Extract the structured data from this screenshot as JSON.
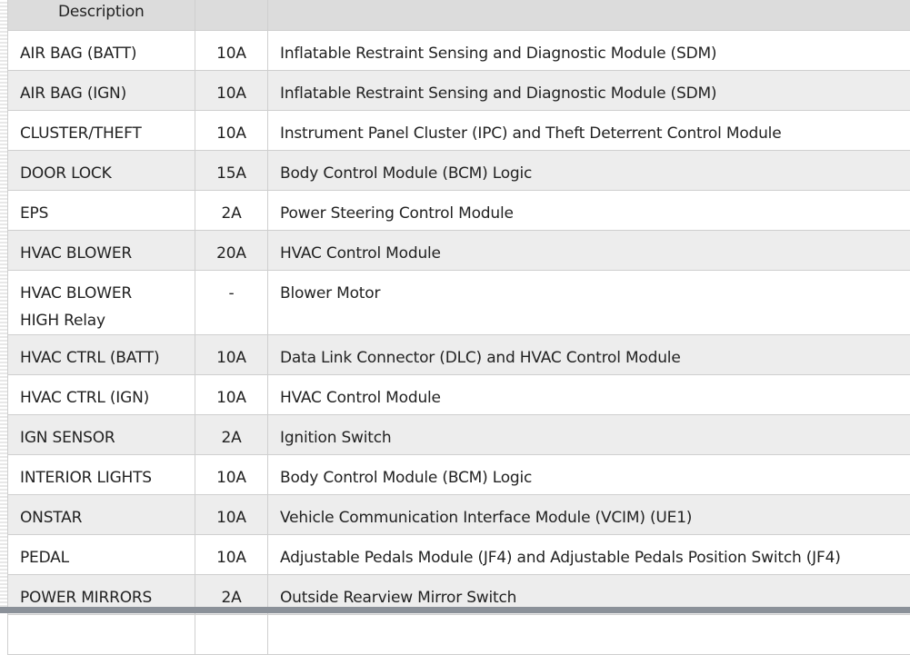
{
  "table": {
    "headers": [
      "Description",
      "",
      ""
    ],
    "rows": [
      {
        "name": "AIR BAG (BATT)",
        "amp": "10A",
        "desc": "Inflatable Restraint Sensing and Diagnostic Module (SDM)"
      },
      {
        "name": "AIR BAG (IGN)",
        "amp": "10A",
        "desc": "Inflatable Restraint Sensing and Diagnostic Module (SDM)"
      },
      {
        "name": "CLUSTER/THEFT",
        "amp": "10A",
        "desc": "Instrument Panel Cluster (IPC) and Theft Deterrent Control Module"
      },
      {
        "name": "DOOR LOCK",
        "amp": "15A",
        "desc": "Body Control Module (BCM) Logic"
      },
      {
        "name": "EPS",
        "amp": "2A",
        "desc": "Power Steering Control Module"
      },
      {
        "name": "HVAC BLOWER",
        "amp": "20A",
        "desc": "HVAC Control Module"
      },
      {
        "name": "HVAC BLOWER HIGH Relay",
        "amp": "-",
        "desc": "Blower Motor"
      },
      {
        "name": "HVAC CTRL (BATT)",
        "amp": "10A",
        "desc": "Data Link Connector (DLC) and HVAC Control Module"
      },
      {
        "name": "HVAC CTRL (IGN)",
        "amp": "10A",
        "desc": "HVAC Control Module"
      },
      {
        "name": "IGN SENSOR",
        "amp": "2A",
        "desc": "Ignition Switch"
      },
      {
        "name": "INTERIOR LIGHTS",
        "amp": "10A",
        "desc": "Body Control Module (BCM) Logic"
      },
      {
        "name": "ONSTAR",
        "amp": "10A",
        "desc": "Vehicle Communication Interface Module (VCIM) (UE1)"
      },
      {
        "name": "PEDAL",
        "amp": "10A",
        "desc": "Adjustable Pedals Module (JF4) and Adjustable Pedals Position Switch (JF4)"
      },
      {
        "name": "POWER MIRRORS",
        "amp": "2A",
        "desc": "Outside Rearview Mirror Switch"
      }
    ]
  }
}
